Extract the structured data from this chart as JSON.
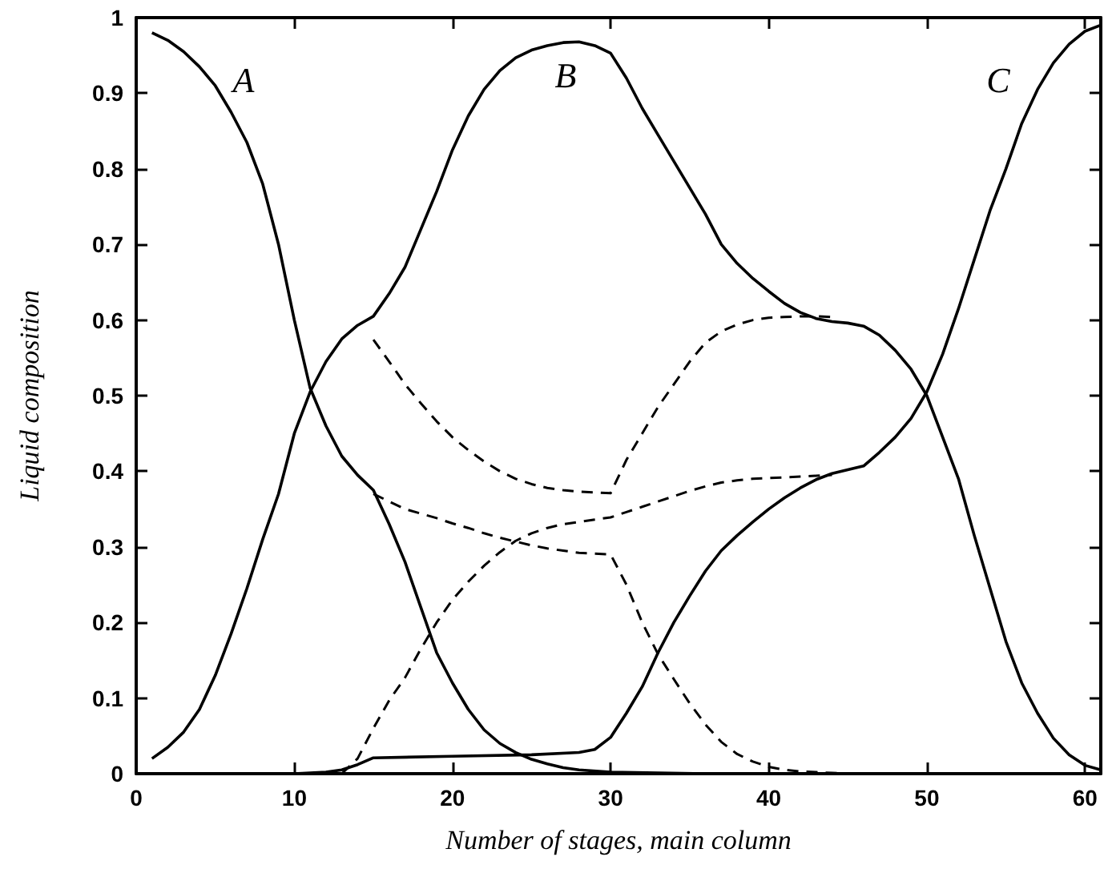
{
  "chart_data": {
    "type": "line",
    "xlabel": "Number of stages, main column",
    "ylabel": "Liquid composition",
    "xlim": [
      0,
      61
    ],
    "xticks": [
      0,
      10,
      20,
      30,
      40,
      50,
      60
    ],
    "ylim": [
      0,
      1
    ],
    "yticks": [
      0,
      0.1,
      0.2,
      0.3,
      0.4,
      0.5,
      0.6,
      0.7,
      0.8,
      0.9,
      1
    ],
    "grid": false,
    "marker": "none",
    "annotations": [
      "A",
      "B",
      "C"
    ],
    "series": [
      {
        "color": "#000000",
        "line_style": "solid",
        "x": [
          1,
          2,
          3,
          4,
          5,
          6,
          7,
          8,
          9,
          10,
          11,
          12,
          13,
          14,
          15,
          16,
          17,
          18,
          19,
          20,
          21,
          22,
          23,
          24,
          25,
          26,
          27,
          28,
          30,
          33,
          36,
          61
        ],
        "values": [
          0.98,
          0.97,
          0.955,
          0.935,
          0.91,
          0.875,
          0.835,
          0.78,
          0.7,
          0.6,
          0.51,
          0.46,
          0.42,
          0.395,
          0.375,
          0.33,
          0.28,
          0.22,
          0.16,
          0.12,
          0.085,
          0.058,
          0.04,
          0.028,
          0.019,
          0.013,
          0.008,
          0.005,
          0.002,
          0.001,
          0,
          0
        ]
      },
      {
        "color": "#000000",
        "line_style": "solid",
        "x": [
          1,
          2,
          3,
          4,
          5,
          6,
          7,
          8,
          9,
          10,
          11,
          12,
          13,
          14,
          15,
          16,
          17,
          18,
          19,
          20,
          21,
          22,
          23,
          24,
          25,
          26,
          27,
          28,
          29,
          30,
          31,
          32,
          33,
          34,
          35,
          36,
          37,
          38,
          39,
          40,
          41,
          42,
          43,
          44,
          45,
          46,
          47,
          48,
          49,
          50,
          51,
          52,
          53,
          54,
          55,
          56,
          57,
          58,
          59,
          60,
          61
        ],
        "values": [
          0.02,
          0.035,
          0.055,
          0.085,
          0.13,
          0.185,
          0.245,
          0.31,
          0.37,
          0.45,
          0.505,
          0.545,
          0.575,
          0.593,
          0.605,
          0.635,
          0.67,
          0.72,
          0.77,
          0.825,
          0.87,
          0.905,
          0.93,
          0.947,
          0.957,
          0.963,
          0.967,
          0.968,
          0.963,
          0.953,
          0.92,
          0.88,
          0.845,
          0.81,
          0.775,
          0.74,
          0.7,
          0.675,
          0.655,
          0.638,
          0.622,
          0.61,
          0.602,
          0.598,
          0.596,
          0.592,
          0.58,
          0.56,
          0.535,
          0.5,
          0.445,
          0.39,
          0.315,
          0.245,
          0.175,
          0.12,
          0.08,
          0.047,
          0.025,
          0.011,
          0.005
        ]
      },
      {
        "color": "#000000",
        "line_style": "solid",
        "x": [
          1,
          5,
          10,
          11,
          12,
          13,
          14,
          15,
          20,
          25,
          28,
          29,
          30,
          31,
          32,
          33,
          34,
          35,
          36,
          37,
          38,
          39,
          40,
          41,
          42,
          43,
          44,
          45,
          46,
          47,
          48,
          49,
          50,
          51,
          52,
          53,
          54,
          55,
          56,
          57,
          58,
          59,
          60,
          61
        ],
        "values": [
          0,
          0,
          0,
          0.001,
          0.002,
          0.005,
          0.012,
          0.021,
          0.023,
          0.025,
          0.028,
          0.032,
          0.048,
          0.08,
          0.115,
          0.16,
          0.2,
          0.235,
          0.268,
          0.295,
          0.315,
          0.333,
          0.35,
          0.365,
          0.378,
          0.389,
          0.397,
          0.402,
          0.407,
          0.425,
          0.445,
          0.47,
          0.505,
          0.555,
          0.615,
          0.68,
          0.745,
          0.8,
          0.86,
          0.905,
          0.94,
          0.965,
          0.982,
          0.99
        ]
      },
      {
        "color": "#000000",
        "line_style": "dashed",
        "x": [
          15,
          16,
          17,
          18,
          19,
          20,
          21,
          22,
          23,
          24,
          25,
          26,
          27,
          28,
          29,
          30,
          31,
          32,
          33,
          34,
          35,
          36,
          37,
          38,
          39,
          40,
          41,
          42,
          43,
          44
        ],
        "values": [
          0.574,
          0.545,
          0.515,
          0.49,
          0.466,
          0.445,
          0.428,
          0.413,
          0.4,
          0.39,
          0.383,
          0.378,
          0.375,
          0.373,
          0.372,
          0.371,
          0.415,
          0.45,
          0.485,
          0.515,
          0.545,
          0.57,
          0.585,
          0.594,
          0.6,
          0.603,
          0.604,
          0.605,
          0.605,
          0.604
        ]
      },
      {
        "color": "#000000",
        "line_style": "dashed",
        "x": [
          15,
          16,
          17,
          18,
          19,
          20,
          21,
          22,
          23,
          24,
          25,
          26,
          27,
          28,
          29,
          30,
          31,
          32,
          33,
          34,
          35,
          36,
          37,
          38,
          39,
          40,
          41,
          42,
          43,
          44,
          45
        ],
        "values": [
          0.37,
          0.36,
          0.35,
          0.344,
          0.338,
          0.331,
          0.325,
          0.318,
          0.312,
          0.307,
          0.302,
          0.298,
          0.295,
          0.292,
          0.291,
          0.29,
          0.25,
          0.2,
          0.158,
          0.125,
          0.093,
          0.065,
          0.042,
          0.026,
          0.016,
          0.009,
          0.005,
          0.003,
          0.002,
          0.001,
          0
        ]
      },
      {
        "color": "#000000",
        "line_style": "dashed",
        "x": [
          13,
          14,
          15,
          16,
          17,
          18,
          19,
          20,
          21,
          22,
          23,
          24,
          25,
          26,
          27,
          28,
          29,
          30,
          31,
          32,
          33,
          34,
          35,
          36,
          37,
          38,
          39,
          40,
          41,
          42,
          43,
          44
        ],
        "values": [
          0,
          0.02,
          0.06,
          0.097,
          0.127,
          0.165,
          0.2,
          0.23,
          0.254,
          0.275,
          0.293,
          0.308,
          0.318,
          0.325,
          0.33,
          0.333,
          0.336,
          0.339,
          0.346,
          0.353,
          0.36,
          0.367,
          0.374,
          0.38,
          0.385,
          0.388,
          0.39,
          0.391,
          0.392,
          0.393,
          0.394,
          0.395
        ]
      }
    ]
  }
}
